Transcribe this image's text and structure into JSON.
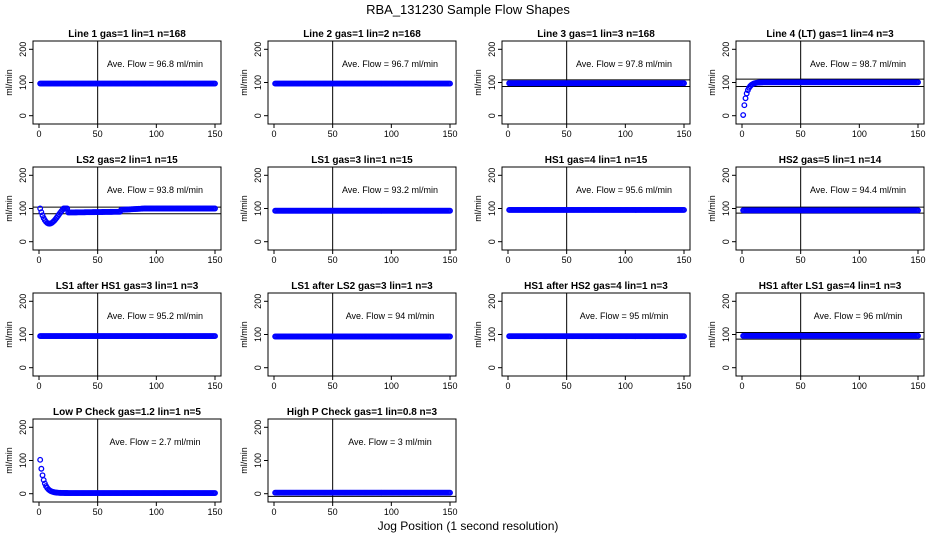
{
  "figure": {
    "title": "RBA_131230  Sample Flow Shapes",
    "xlabel": "Jog Position (1 second resolution)"
  },
  "colors": {
    "marker": "#0000ff",
    "axis": "#000000"
  },
  "chart_data": [
    {
      "type": "scatter",
      "title": "Line 1 gas=1 lin=1 n=168",
      "annotation": "Ave. Flow = 96.8  ml/min",
      "ylabel": "ml/min",
      "xlim": [
        0,
        150
      ],
      "ylim": [
        -25,
        225
      ],
      "xticks": [
        0,
        50,
        100,
        150
      ],
      "yticks": [
        0,
        100,
        200
      ],
      "vline": 50,
      "hlines": [],
      "shape": "flat",
      "x_range": [
        1,
        150
      ],
      "y_value": 96.8
    },
    {
      "type": "scatter",
      "title": "Line 2 gas=1 lin=2 n=168",
      "annotation": "Ave. Flow = 96.7  ml/min",
      "ylabel": "ml/min",
      "xlim": [
        0,
        150
      ],
      "ylim": [
        -25,
        225
      ],
      "xticks": [
        0,
        50,
        100,
        150
      ],
      "yticks": [
        0,
        100,
        200
      ],
      "vline": 50,
      "hlines": [],
      "shape": "flat",
      "x_range": [
        1,
        150
      ],
      "y_value": 96.7
    },
    {
      "type": "scatter",
      "title": "Line 3 gas=1 lin=3 n=168",
      "annotation": "Ave. Flow = 97.8  ml/min",
      "ylabel": "ml/min",
      "xlim": [
        0,
        150
      ],
      "ylim": [
        -25,
        225
      ],
      "xticks": [
        0,
        50,
        100,
        150
      ],
      "yticks": [
        0,
        100,
        200
      ],
      "vline": 50,
      "hlines": [
        108,
        88
      ],
      "shape": "flat",
      "x_range": [
        1,
        150
      ],
      "y_value": 97.8
    },
    {
      "type": "scatter",
      "title": "Line 4 (LT) gas=1 lin=4 n=3",
      "annotation": "Ave. Flow = 98.7  ml/min",
      "ylabel": "ml/min",
      "xlim": [
        0,
        150
      ],
      "ylim": [
        -25,
        225
      ],
      "xticks": [
        0,
        50,
        100,
        150
      ],
      "yticks": [
        0,
        100,
        200
      ],
      "vline": 50,
      "hlines": [
        110,
        88
      ],
      "shape": "rise",
      "x_range": [
        1,
        150
      ],
      "y_value": 98.7
    },
    {
      "type": "scatter",
      "title": "LS2 gas=2 lin=1 n=15",
      "annotation": "Ave. Flow = 93.8  ml/min",
      "ylabel": "ml/min",
      "xlim": [
        0,
        150
      ],
      "ylim": [
        -25,
        225
      ],
      "xticks": [
        0,
        50,
        100,
        150
      ],
      "yticks": [
        0,
        100,
        200
      ],
      "vline": 50,
      "hlines": [
        104,
        84
      ],
      "shape": "dip",
      "x_range": [
        1,
        150
      ],
      "y_value": 93.8
    },
    {
      "type": "scatter",
      "title": "LS1 gas=3 lin=1 n=15",
      "annotation": "Ave. Flow = 93.2  ml/min",
      "ylabel": "ml/min",
      "xlim": [
        0,
        150
      ],
      "ylim": [
        -25,
        225
      ],
      "xticks": [
        0,
        50,
        100,
        150
      ],
      "yticks": [
        0,
        100,
        200
      ],
      "vline": 50,
      "hlines": [],
      "shape": "flat",
      "x_range": [
        1,
        150
      ],
      "y_value": 93.2
    },
    {
      "type": "scatter",
      "title": "HS1 gas=4 lin=1 n=15",
      "annotation": "Ave. Flow = 95.6  ml/min",
      "ylabel": "ml/min",
      "xlim": [
        0,
        150
      ],
      "ylim": [
        -25,
        225
      ],
      "xticks": [
        0,
        50,
        100,
        150
      ],
      "yticks": [
        0,
        100,
        200
      ],
      "vline": 50,
      "hlines": [],
      "shape": "flat",
      "x_range": [
        1,
        150
      ],
      "y_value": 95.6
    },
    {
      "type": "scatter",
      "title": "HS2 gas=5 lin=1 n=14",
      "annotation": "Ave. Flow = 94.4  ml/min",
      "ylabel": "ml/min",
      "xlim": [
        0,
        150
      ],
      "ylim": [
        -25,
        225
      ],
      "xticks": [
        0,
        50,
        100,
        150
      ],
      "yticks": [
        0,
        100,
        200
      ],
      "vline": 50,
      "hlines": [
        104,
        86
      ],
      "shape": "flat",
      "x_range": [
        1,
        150
      ],
      "y_value": 94.4
    },
    {
      "type": "scatter",
      "title": "LS1 after HS1 gas=3 lin=1 n=3",
      "annotation": "Ave. Flow = 95.2  ml/min",
      "ylabel": "ml/min",
      "xlim": [
        0,
        150
      ],
      "ylim": [
        -25,
        225
      ],
      "xticks": [
        0,
        50,
        100,
        150
      ],
      "yticks": [
        0,
        100,
        200
      ],
      "vline": 50,
      "hlines": [],
      "shape": "flat",
      "x_range": [
        1,
        150
      ],
      "y_value": 95.2
    },
    {
      "type": "scatter",
      "title": "LS1 after LS2 gas=3 lin=1 n=3",
      "annotation": "Ave. Flow = 94  ml/min",
      "ylabel": "ml/min",
      "xlim": [
        0,
        150
      ],
      "ylim": [
        -25,
        225
      ],
      "xticks": [
        0,
        50,
        100,
        150
      ],
      "yticks": [
        0,
        100,
        200
      ],
      "vline": 50,
      "hlines": [],
      "shape": "flat",
      "x_range": [
        1,
        150
      ],
      "y_value": 94
    },
    {
      "type": "scatter",
      "title": "HS1 after HS2 gas=4 lin=1 n=3",
      "annotation": "Ave. Flow = 95  ml/min",
      "ylabel": "ml/min",
      "xlim": [
        0,
        150
      ],
      "ylim": [
        -25,
        225
      ],
      "xticks": [
        0,
        50,
        100,
        150
      ],
      "yticks": [
        0,
        100,
        200
      ],
      "vline": 50,
      "hlines": [],
      "shape": "flat",
      "x_range": [
        1,
        150
      ],
      "y_value": 95
    },
    {
      "type": "scatter",
      "title": "HS1 after LS1 gas=4 lin=1 n=3",
      "annotation": "Ave. Flow = 96  ml/min",
      "ylabel": "ml/min",
      "xlim": [
        0,
        150
      ],
      "ylim": [
        -25,
        225
      ],
      "xticks": [
        0,
        50,
        100,
        150
      ],
      "yticks": [
        0,
        100,
        200
      ],
      "vline": 50,
      "hlines": [
        106,
        86
      ],
      "shape": "flat",
      "x_range": [
        1,
        150
      ],
      "y_value": 96
    },
    {
      "type": "scatter",
      "title": "Low P Check gas=1.2 lin=1 n=5",
      "annotation": "Ave. Flow =  2.7  ml/min",
      "ylabel": "ml/min",
      "xlim": [
        0,
        150
      ],
      "ylim": [
        -25,
        225
      ],
      "xticks": [
        0,
        50,
        100,
        150
      ],
      "yticks": [
        0,
        100,
        200
      ],
      "vline": 50,
      "hlines": [],
      "shape": "decay",
      "x_range": [
        1,
        150
      ],
      "y_value": 2.7
    },
    {
      "type": "scatter",
      "title": "High P Check gas=1 lin=0.8 n=3",
      "annotation": "Ave. Flow =  3  ml/min",
      "ylabel": "ml/min",
      "xlim": [
        0,
        150
      ],
      "ylim": [
        -25,
        225
      ],
      "xticks": [
        0,
        50,
        100,
        150
      ],
      "yticks": [
        0,
        100,
        200
      ],
      "vline": 50,
      "hlines": [
        -8
      ],
      "shape": "flat",
      "x_range": [
        1,
        150
      ],
      "y_value": 3
    }
  ]
}
